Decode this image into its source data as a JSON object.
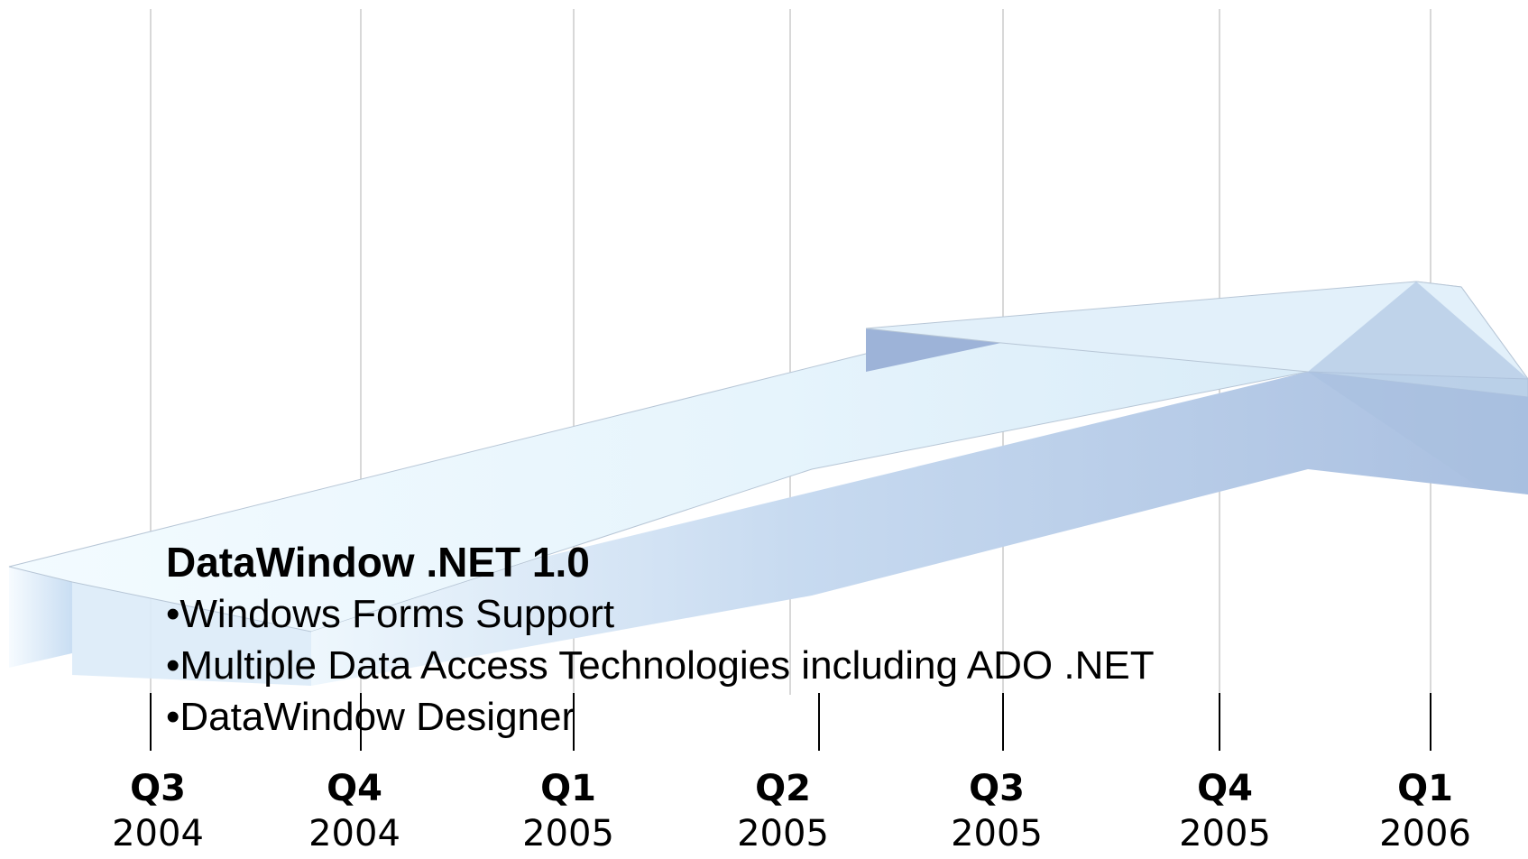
{
  "feature_box": {
    "title": "DataWindow .NET 1.0",
    "bullets": [
      "•Windows Forms Support",
      "•Multiple Data Access Technologies including ADO .NET",
      "•DataWindow Designer"
    ]
  },
  "timeline": {
    "quarters": [
      {
        "quarter": "Q3",
        "year": "2004"
      },
      {
        "quarter": "Q4",
        "year": "2004"
      },
      {
        "quarter": "Q1",
        "year": "2005"
      },
      {
        "quarter": "Q2",
        "year": "2005"
      },
      {
        "quarter": "Q3",
        "year": "2005"
      },
      {
        "quarter": "Q4",
        "year": "2005"
      },
      {
        "quarter": "Q1",
        "year": "2006"
      }
    ]
  },
  "colors": {
    "arrow_top": "#e4f2fb",
    "arrow_side": "#a9bfe0",
    "arrow_inner": "#9db3d8",
    "grid_line": "#cccccc",
    "tick_line": "#000000"
  }
}
